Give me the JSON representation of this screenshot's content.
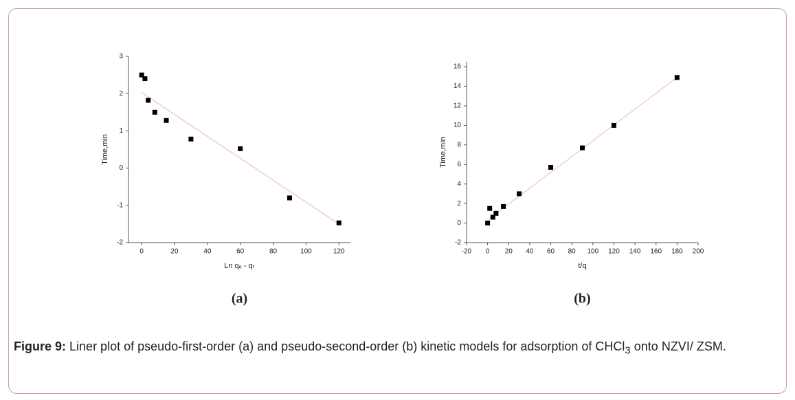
{
  "chart_data": [
    {
      "type": "scatter",
      "panel_label": "(a)",
      "x_label": "Ln qₑ - qₜ",
      "y_label": "Time,min",
      "xlim": [
        -8,
        127
      ],
      "ylim": [
        -2,
        3
      ],
      "xticks": [
        0,
        20,
        40,
        60,
        80,
        100,
        120
      ],
      "yticks": [
        -2,
        -1,
        0,
        1,
        2,
        3
      ],
      "points": {
        "x": [
          0,
          2,
          4,
          8,
          15,
          30,
          60,
          90,
          120
        ],
        "values": [
          2.5,
          2.4,
          1.82,
          1.5,
          1.28,
          0.78,
          0.52,
          -0.8,
          -1.47
        ],
        "color": "#000000"
      },
      "fit": {
        "x": [
          0,
          120
        ],
        "values": [
          2.03,
          -1.5
        ],
        "color": "#f0b4c4"
      }
    },
    {
      "type": "scatter",
      "panel_label": "(b)",
      "x_label": "t/q",
      "y_label": "Time,min",
      "xlim": [
        -20,
        200
      ],
      "ylim": [
        -2,
        16.5
      ],
      "xticks": [
        -20,
        0,
        20,
        40,
        60,
        80,
        100,
        120,
        140,
        160,
        180,
        200
      ],
      "yticks": [
        -2,
        0,
        2,
        4,
        6,
        8,
        10,
        12,
        14,
        16
      ],
      "points": {
        "x": [
          0,
          2,
          5,
          8,
          15,
          30,
          60,
          90,
          120,
          180
        ],
        "values": [
          0,
          1.5,
          0.6,
          1,
          1.7,
          3,
          5.7,
          7.7,
          10,
          14.9
        ],
        "color": "#000000"
      },
      "fit": {
        "x": [
          0,
          180
        ],
        "values": [
          0.32,
          14.9
        ],
        "color": "#f0b4c4"
      }
    }
  ],
  "caption": {
    "label": "Figure 9:",
    "text": "Liner plot of pseudo-first-order (a) and pseudo-second-order (b) kinetic models for adsorption of CHCl",
    "subscript": "3",
    "text_end": "onto NZVI/ ZSM."
  }
}
